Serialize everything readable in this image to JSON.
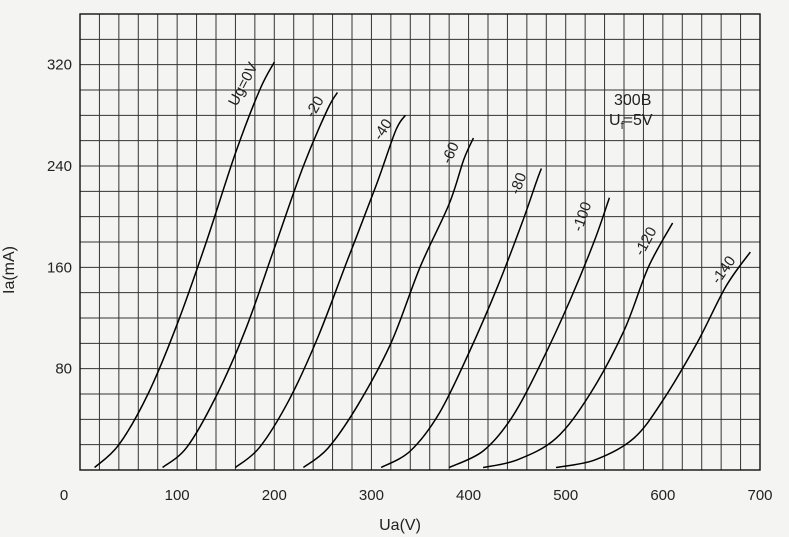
{
  "chart_data": {
    "type": "line",
    "title": "",
    "xlabel": "Ua(V)",
    "ylabel": "Ia(mA)",
    "xlim": [
      0,
      700
    ],
    "ylim": [
      0,
      360
    ],
    "grid": true,
    "x_ticks": [
      0,
      100,
      200,
      300,
      400,
      500,
      600,
      700
    ],
    "x_tick_labels": [
      "0",
      "100",
      "200",
      "300",
      "400",
      "500",
      "600",
      "700"
    ],
    "y_ticks": [
      80,
      160,
      240,
      320
    ],
    "y_tick_labels": [
      "80",
      "160",
      "240",
      "320"
    ],
    "annotation": {
      "line1": "300B",
      "line2_main": "U",
      "line2_sub": "f",
      "line2_rest": "=5V"
    },
    "series": [
      {
        "name": "Ug=0V",
        "label": "Ug=0V",
        "x": [
          15,
          40,
          70,
          100,
          130,
          160,
          185,
          200
        ],
        "y": [
          2,
          20,
          60,
          115,
          180,
          250,
          300,
          322
        ]
      },
      {
        "name": "-20",
        "label": "-20",
        "x": [
          85,
          110,
          140,
          170,
          200,
          230,
          255,
          265
        ],
        "y": [
          2,
          18,
          58,
          110,
          175,
          240,
          285,
          298
        ]
      },
      {
        "name": "-40",
        "label": "-40",
        "x": [
          160,
          185,
          215,
          245,
          275,
          305,
          325,
          335
        ],
        "y": [
          2,
          18,
          55,
          105,
          165,
          225,
          268,
          280
        ]
      },
      {
        "name": "-60",
        "label": "-60",
        "x": [
          230,
          255,
          285,
          320,
          350,
          380,
          395,
          405
        ],
        "y": [
          2,
          17,
          50,
          100,
          160,
          210,
          245,
          262
        ]
      },
      {
        "name": "-80",
        "label": "-80",
        "x": [
          310,
          340,
          370,
          400,
          430,
          455,
          470,
          475
        ],
        "y": [
          2,
          15,
          45,
          92,
          145,
          195,
          228,
          238
        ]
      },
      {
        "name": "-100",
        "label": "-100",
        "x": [
          380,
          415,
          445,
          475,
          505,
          530,
          545
        ],
        "y": [
          2,
          15,
          42,
          85,
          135,
          182,
          215
        ]
      },
      {
        "name": "-120",
        "label": "-120",
        "x": [
          415,
          450,
          490,
          525,
          560,
          585,
          610
        ],
        "y": [
          2,
          8,
          25,
          60,
          110,
          160,
          195
        ]
      },
      {
        "name": "-140",
        "label": "-140",
        "x": [
          490,
          530,
          570,
          600,
          635,
          665,
          690
        ],
        "y": [
          2,
          8,
          25,
          55,
          100,
          145,
          172
        ]
      }
    ]
  }
}
